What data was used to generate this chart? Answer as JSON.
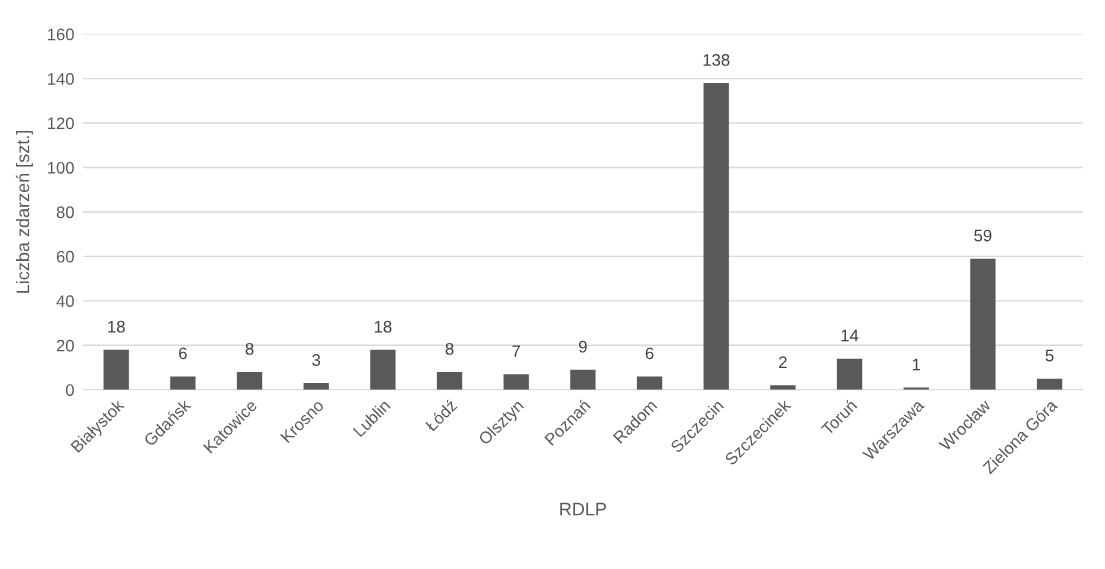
{
  "chart_data": {
    "type": "bar",
    "xlabel": "RDLP",
    "ylabel": "Liczba zdarzeń [szt.]",
    "categories": [
      "Białystok",
      "Gdańsk",
      "Katowice",
      "Krosno",
      "Lublin",
      "Łódź",
      "Olsztyn",
      "Poznań",
      "Radom",
      "Szczecin",
      "Szczecinek",
      "Toruń",
      "Warszawa",
      "Wrocław",
      "Zielona Góra"
    ],
    "values": [
      18,
      6,
      8,
      3,
      18,
      8,
      7,
      9,
      6,
      138,
      2,
      14,
      1,
      59,
      5
    ],
    "color": "#595959",
    "ylim": [
      0,
      160
    ],
    "yticks": [
      0,
      20,
      40,
      60,
      80,
      100,
      120,
      140,
      160
    ],
    "grid": "y",
    "data_labels": true
  }
}
